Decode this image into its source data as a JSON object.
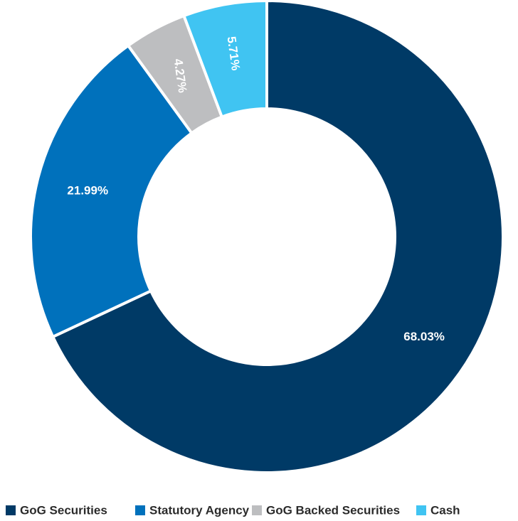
{
  "chart_data": {
    "type": "pie",
    "donut": true,
    "title": "",
    "categories": [
      "GoG Securities",
      "Statutory Agency",
      "GoG Backed Securities",
      "Cash"
    ],
    "values": [
      68.03,
      21.99,
      4.27,
      5.71
    ],
    "value_labels": [
      "68.03%",
      "21.99%",
      "4.27%",
      "5.71%"
    ],
    "colors": [
      "#003A66",
      "#0071BC",
      "#BDBEC0",
      "#40C4F2"
    ],
    "label_color": "#ffffff",
    "legend": {
      "placement": "bottom",
      "entries": [
        "GoG Securities",
        "Statutory Agency",
        "GoG Backed Securities",
        "Cash"
      ]
    }
  }
}
